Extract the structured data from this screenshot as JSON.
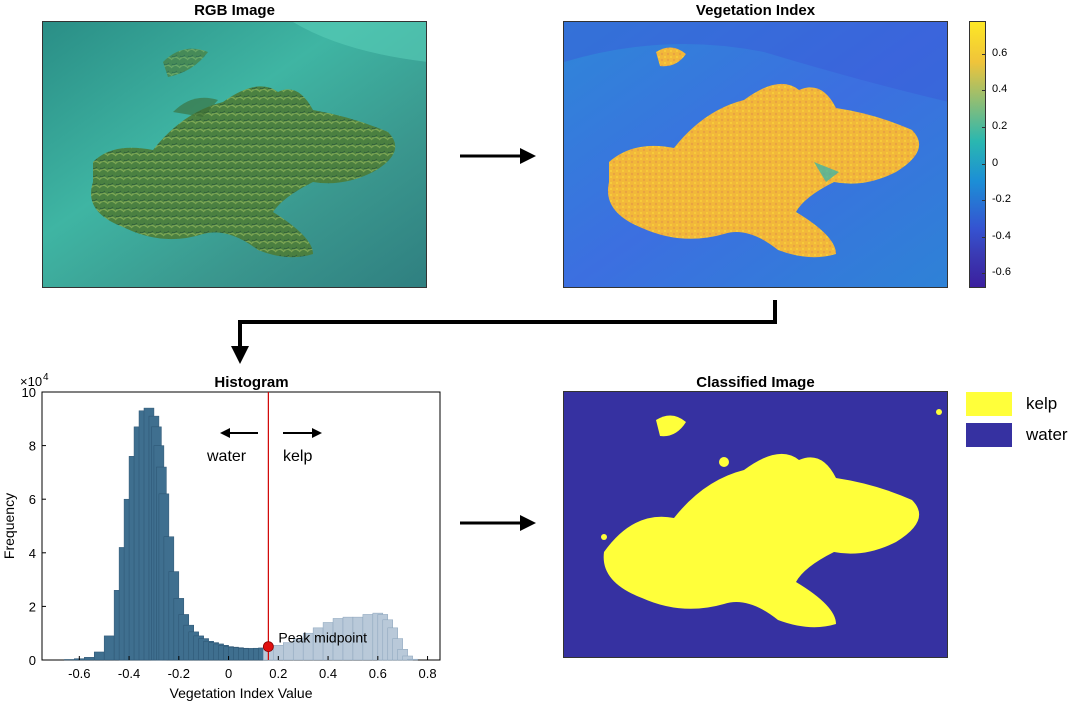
{
  "panels": {
    "rgb": {
      "title": "RGB Image"
    },
    "vegetation": {
      "title": "Vegetation Index"
    },
    "histogram": {
      "title": "Histogram"
    },
    "classified": {
      "title": "Classified Image"
    }
  },
  "colorbar": {
    "ticks": [
      "0.6",
      "0.4",
      "0.2",
      "0",
      "-0.2",
      "-0.4",
      "-0.6"
    ],
    "colors": [
      "#fde725",
      "#f0c43a",
      "#2ab7b0",
      "#1c8fd6",
      "#3553d1",
      "#3a3ab3",
      "#3b1f9e"
    ]
  },
  "legend": [
    {
      "label": "kelp",
      "color": "#ffff3a"
    },
    {
      "label": "water",
      "color": "#3631a1"
    }
  ],
  "chart_data": {
    "type": "bar",
    "title": "Histogram",
    "xlabel": "Vegetation Index Value",
    "ylabel": "Frequency",
    "y_exponent_label": "×10",
    "y_exponent_power": "4",
    "xlim": [
      -0.75,
      0.85
    ],
    "ylim": [
      0,
      10
    ],
    "x_ticks": [
      "-0.6",
      "-0.4",
      "-0.2",
      "0",
      "0.2",
      "0.4",
      "0.6",
      "0.8"
    ],
    "x_tick_values": [
      -0.6,
      -0.4,
      -0.2,
      0,
      0.2,
      0.4,
      0.6,
      0.8
    ],
    "y_ticks": [
      "0",
      "2",
      "4",
      "6",
      "8",
      "10"
    ],
    "y_tick_values": [
      0,
      2,
      4,
      6,
      8,
      10
    ],
    "threshold_x": 0.16,
    "threshold_y": 0.5,
    "annotation": "Peak midpoint",
    "water_label": "water",
    "kelp_label": "kelp",
    "series": [
      {
        "x": [
          -0.72,
          -0.68,
          -0.64,
          -0.6,
          -0.56,
          -0.52,
          -0.48,
          -0.44,
          -0.42,
          -0.4,
          -0.38,
          -0.36,
          -0.34,
          -0.32,
          -0.3,
          -0.29,
          -0.28,
          -0.27,
          -0.26,
          -0.24,
          -0.22,
          -0.2,
          -0.18,
          -0.16,
          -0.14,
          -0.12,
          -0.1,
          -0.08,
          -0.06,
          -0.04,
          -0.02,
          0,
          0.02,
          0.04,
          0.06,
          0.08,
          0.1,
          0.12,
          0.14,
          0.16,
          0.18,
          0.2,
          0.24,
          0.28,
          0.32,
          0.36,
          0.4,
          0.44,
          0.48,
          0.52,
          0.56,
          0.6,
          0.62,
          0.64,
          0.66,
          0.68,
          0.7,
          0.72,
          0.74
        ],
        "values": [
          0,
          0,
          0.02,
          0.05,
          0.1,
          0.3,
          0.9,
          2.6,
          4.2,
          6.0,
          7.6,
          8.7,
          9.3,
          9.4,
          9.1,
          8.7,
          8.0,
          7.2,
          6.2,
          4.6,
          3.3,
          2.3,
          1.7,
          1.3,
          1.05,
          0.9,
          0.8,
          0.7,
          0.65,
          0.6,
          0.55,
          0.5,
          0.48,
          0.46,
          0.44,
          0.43,
          0.43,
          0.44,
          0.45,
          0.47,
          0.5,
          0.55,
          0.65,
          0.8,
          1.0,
          1.2,
          1.4,
          1.55,
          1.6,
          1.6,
          1.7,
          1.75,
          1.7,
          1.5,
          1.2,
          0.8,
          0.4,
          0.15,
          0.03
        ]
      }
    ]
  }
}
